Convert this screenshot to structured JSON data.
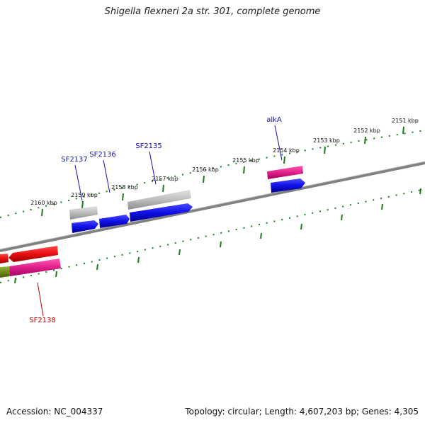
{
  "title": "Shigella flexneri 2a str. 301, complete genome",
  "footer": {
    "accession": "Accession: NC_004337",
    "summary": "Topology: circular; Length: 4,607,203 bp; Genes: 4,305"
  },
  "colors": {
    "backbone": "#808080",
    "tick": "#1f7a1f",
    "tick_label": "#111111",
    "gene_label_blue": "#1010b0",
    "gene_label_red": "#c00000",
    "feature_blue": "#1010e8",
    "feature_gray": "#a8a8a8",
    "feature_pink": "#e0208a",
    "feature_red": "#e81010",
    "feature_olive": "#6f8a1a"
  },
  "ticks": [
    {
      "label": "2151 kbp"
    },
    {
      "label": "2152 kbp"
    },
    {
      "label": "2153 kbp"
    },
    {
      "label": "2154 kbp"
    },
    {
      "label": "2155 kbp"
    },
    {
      "label": "2156 kbp"
    },
    {
      "label": "2157 kbp"
    },
    {
      "label": "2158 kbp"
    },
    {
      "label": "2159 kbp"
    },
    {
      "label": "2160 kbp"
    }
  ],
  "genes": [
    {
      "name": "alkA",
      "color": "blue"
    },
    {
      "name": "SF2135",
      "color": "blue"
    },
    {
      "name": "SF2136",
      "color": "blue"
    },
    {
      "name": "SF2137",
      "color": "blue"
    },
    {
      "name": "SF2138",
      "color": "red"
    }
  ]
}
